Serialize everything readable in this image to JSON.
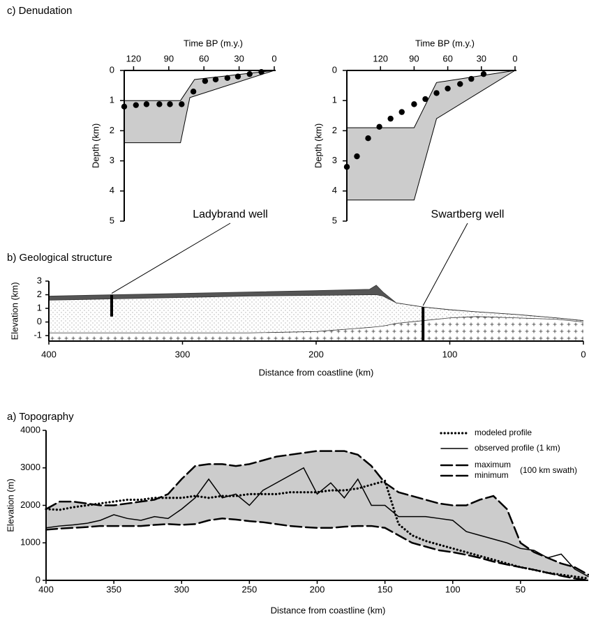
{
  "chart_data": [
    {
      "type": "scatter",
      "title": "c) Denudation",
      "xlabel": "Time BP (m.y.)",
      "ylabel": "Depth (km)",
      "xlim": [
        128,
        0
      ],
      "xticks": [
        120,
        90,
        60,
        30,
        0
      ],
      "ylim": [
        0,
        5
      ],
      "yticks": [
        0,
        1,
        2,
        3,
        4,
        5
      ],
      "x": [
        128,
        118,
        109,
        98,
        89,
        79,
        69,
        59,
        50,
        40,
        31,
        21,
        11
      ],
      "values": [
        1.2,
        1.15,
        1.12,
        1.12,
        1.12,
        1.12,
        0.7,
        0.35,
        0.3,
        0.25,
        0.2,
        0.12,
        0.05
      ],
      "envelope": {
        "x": [
          128,
          80,
          68,
          0,
          72,
          80,
          128
        ],
        "y": [
          1.0,
          1.0,
          0.3,
          0,
          0.9,
          2.4,
          2.4
        ]
      }
    },
    {
      "type": "scatter",
      "xlabel": "Time BP (m.y.)",
      "ylabel": "Depth (km)",
      "xlim": [
        150,
        0
      ],
      "xticks": [
        120,
        90,
        60,
        30,
        0
      ],
      "ylim": [
        0,
        5
      ],
      "yticks": [
        0,
        1,
        2,
        3,
        4,
        5
      ],
      "x": [
        150,
        141,
        131,
        121,
        111,
        101,
        90,
        80,
        70,
        60,
        49,
        39,
        28
      ],
      "values": [
        3.2,
        2.85,
        2.25,
        1.87,
        1.6,
        1.38,
        1.12,
        0.95,
        0.75,
        0.6,
        0.45,
        0.28,
        0.12
      ],
      "envelope": {
        "x": [
          150,
          90,
          70,
          0,
          70,
          90,
          150
        ],
        "y": [
          1.9,
          1.9,
          0.4,
          0,
          1.6,
          4.3,
          4.3
        ]
      }
    },
    {
      "type": "section",
      "title": "b) Geological structure",
      "xlabel": "Distance from coastline (km)",
      "ylabel": "Elevation (km)",
      "xlim": [
        400,
        0
      ],
      "xticks": [
        400,
        300,
        200,
        100,
        0
      ],
      "ylim": [
        -1.4,
        3
      ],
      "yticks": [
        3,
        2,
        1,
        0,
        -1
      ],
      "x": [
        400,
        350,
        300,
        250,
        200,
        160,
        155,
        150,
        140,
        120,
        100,
        80,
        50,
        20,
        0
      ],
      "surface": [
        1.9,
        2.0,
        2.1,
        2.2,
        2.3,
        2.4,
        2.7,
        2.2,
        1.4,
        1.1,
        0.9,
        0.75,
        0.55,
        0.3,
        0.1
      ],
      "sediment_top": [
        1.6,
        1.7,
        1.8,
        1.9,
        1.95,
        2.0,
        2.0,
        1.9,
        1.4,
        1.1,
        0.9,
        0.75,
        0.55,
        0.3,
        0.1
      ],
      "basement_top": [
        -0.8,
        -0.8,
        -0.8,
        -0.8,
        -0.7,
        -0.4,
        -0.35,
        -0.3,
        -0.1,
        0.1,
        0.3,
        0.4,
        0.3,
        0.2,
        0
      ],
      "wells": [
        {
          "label": "Ladybrand well",
          "x": 353,
          "top": 2.0,
          "bottom": 0.4
        },
        {
          "label": "Swartberg well",
          "x": 120,
          "top": 1.1,
          "bottom": -1.4
        }
      ]
    },
    {
      "type": "line",
      "title": "a) Topography",
      "xlabel": "Distance from coastline (km)",
      "ylabel": "Elevation (m)",
      "xlim": [
        400,
        0
      ],
      "xticks": [
        400,
        350,
        300,
        250,
        200,
        150,
        100,
        50
      ],
      "ylim": [
        0,
        4000
      ],
      "yticks": [
        0,
        1000,
        2000,
        3000,
        4000
      ],
      "legend_note": "(100 km swath)",
      "band_color": "#cccccc",
      "x": [
        400,
        390,
        380,
        370,
        360,
        350,
        340,
        330,
        320,
        310,
        300,
        290,
        280,
        270,
        260,
        250,
        240,
        230,
        220,
        210,
        200,
        190,
        180,
        170,
        160,
        150,
        140,
        130,
        120,
        110,
        100,
        90,
        80,
        70,
        60,
        50,
        40,
        30,
        20,
        10,
        0
      ],
      "series": [
        {
          "name": "modeled profile",
          "style": "dotted",
          "color": "#000000",
          "values": [
            1900,
            1880,
            1950,
            2000,
            2050,
            2100,
            2150,
            2150,
            2200,
            2200,
            2200,
            2250,
            2200,
            2250,
            2250,
            2300,
            2300,
            2300,
            2350,
            2350,
            2350,
            2400,
            2400,
            2450,
            2550,
            2650,
            1500,
            1200,
            1050,
            950,
            850,
            750,
            650,
            550,
            450,
            350,
            280,
            200,
            150,
            100,
            50
          ]
        },
        {
          "name": "observed profile (1 km)",
          "style": "solid",
          "color": "#000000",
          "values": [
            1400,
            1450,
            1480,
            1520,
            1600,
            1750,
            1650,
            1600,
            1700,
            1650,
            1900,
            2200,
            2700,
            2200,
            2300,
            2000,
            2400,
            2600,
            2800,
            3000,
            2300,
            2600,
            2200,
            2700,
            2000,
            2000,
            1700,
            1700,
            1700,
            1650,
            1600,
            1300,
            1200,
            1100,
            1000,
            850,
            800,
            600,
            700,
            300,
            100
          ]
        },
        {
          "name": "maximum",
          "style": "dashed",
          "color": "#000000",
          "values": [
            1900,
            2100,
            2100,
            2050,
            2000,
            2000,
            2050,
            2100,
            2150,
            2300,
            2700,
            3050,
            3100,
            3100,
            3050,
            3100,
            3200,
            3300,
            3350,
            3400,
            3450,
            3450,
            3450,
            3350,
            3050,
            2600,
            2350,
            2250,
            2150,
            2050,
            2000,
            2000,
            2150,
            2250,
            1900,
            1000,
            750,
            600,
            450,
            350,
            150
          ]
        },
        {
          "name": "minimum",
          "style": "dashed",
          "color": "#000000",
          "values": [
            1350,
            1380,
            1400,
            1420,
            1450,
            1450,
            1450,
            1450,
            1480,
            1500,
            1480,
            1500,
            1600,
            1650,
            1620,
            1580,
            1550,
            1500,
            1450,
            1420,
            1400,
            1400,
            1430,
            1450,
            1450,
            1400,
            1200,
            1000,
            900,
            800,
            750,
            680,
            600,
            500,
            420,
            350,
            280,
            200,
            120,
            50,
            0
          ]
        }
      ]
    }
  ]
}
